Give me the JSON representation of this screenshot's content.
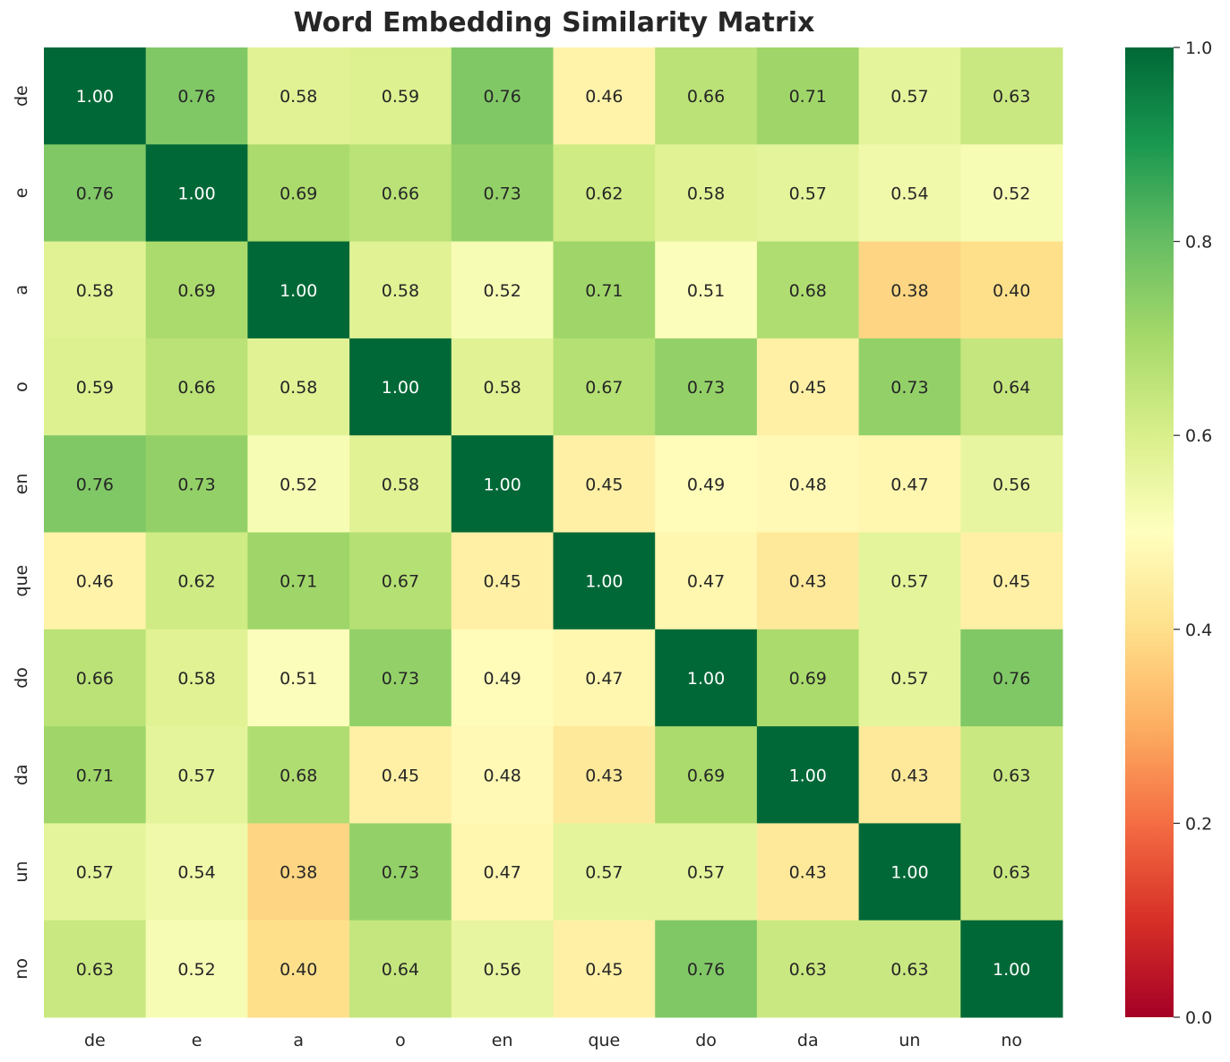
{
  "chart_data": {
    "type": "heatmap",
    "title": "Word Embedding Similarity Matrix",
    "xlabel": "",
    "ylabel": "",
    "x_categories": [
      "de",
      "e",
      "a",
      "o",
      "en",
      "que",
      "do",
      "da",
      "un",
      "no"
    ],
    "y_categories": [
      "de",
      "e",
      "a",
      "o",
      "en",
      "que",
      "do",
      "da",
      "un",
      "no"
    ],
    "values": [
      [
        1.0,
        0.76,
        0.58,
        0.59,
        0.76,
        0.46,
        0.66,
        0.71,
        0.57,
        0.63
      ],
      [
        0.76,
        1.0,
        0.69,
        0.66,
        0.73,
        0.62,
        0.58,
        0.57,
        0.54,
        0.52
      ],
      [
        0.58,
        0.69,
        1.0,
        0.58,
        0.52,
        0.71,
        0.51,
        0.68,
        0.38,
        0.4
      ],
      [
        0.59,
        0.66,
        0.58,
        1.0,
        0.58,
        0.67,
        0.73,
        0.45,
        0.73,
        0.64
      ],
      [
        0.76,
        0.73,
        0.52,
        0.58,
        1.0,
        0.45,
        0.49,
        0.48,
        0.47,
        0.56
      ],
      [
        0.46,
        0.62,
        0.71,
        0.67,
        0.45,
        1.0,
        0.47,
        0.43,
        0.57,
        0.45
      ],
      [
        0.66,
        0.58,
        0.51,
        0.73,
        0.49,
        0.47,
        1.0,
        0.69,
        0.57,
        0.76
      ],
      [
        0.71,
        0.57,
        0.68,
        0.45,
        0.48,
        0.43,
        0.69,
        1.0,
        0.43,
        0.63
      ],
      [
        0.57,
        0.54,
        0.38,
        0.73,
        0.47,
        0.57,
        0.57,
        0.43,
        1.0,
        0.63
      ],
      [
        0.63,
        0.52,
        0.4,
        0.64,
        0.56,
        0.45,
        0.76,
        0.63,
        0.63,
        1.0
      ]
    ],
    "annotation_format": "0.00",
    "colormap": "RdYlGn",
    "colormap_stops": [
      "#a50026",
      "#d73027",
      "#f46d43",
      "#fdae61",
      "#fee08b",
      "#ffffbf",
      "#d9ef8b",
      "#a6d96a",
      "#66bd63",
      "#1a9850",
      "#006837"
    ],
    "vmin": 0.0,
    "vmax": 1.0,
    "colorbar_ticks": [
      "0.0",
      "0.2",
      "0.4",
      "0.6",
      "0.8",
      "1.0"
    ],
    "colorbar_position": "right",
    "grid": false
  }
}
